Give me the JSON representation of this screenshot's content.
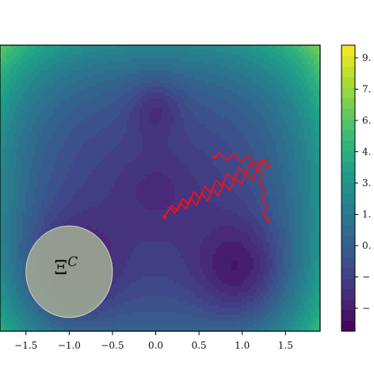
{
  "chart_data": {
    "type": "heatmap",
    "subtype": "filled-contour",
    "title": "",
    "xlabel": "",
    "ylabel": "",
    "colormap": "viridis",
    "x_ticks": [
      -1.5,
      -1.0,
      -0.5,
      0.0,
      0.5,
      1.0,
      1.5
    ],
    "x_tick_labels": [
      "−1.5",
      "−1.0",
      "−0.5",
      "0.0",
      "0.5",
      "1.0",
      "1.5"
    ],
    "xlim": [
      -1.8,
      1.9
    ],
    "ylim": [
      -0.5,
      2.0
    ],
    "colorbar": {
      "tick_labels": [
        "9.",
        "7.",
        "6.",
        "4.",
        "3.",
        "1.",
        "0.",
        "−",
        "−"
      ],
      "range": [
        -2.0,
        9.8
      ]
    },
    "potential_wells": [
      {
        "x": 1.0,
        "y": 0.02,
        "depth": -2.2
      },
      {
        "x": -1.0,
        "y": 0.02,
        "depth": -2.2
      },
      {
        "x": 0.0,
        "y": 1.45,
        "depth": -1.4
      }
    ],
    "region": {
      "label_text": "Ξ",
      "label_superscript": "C",
      "center_x": -1.0,
      "center_y": 0.02,
      "radius_x": 0.5,
      "radius_y": 0.4,
      "fill_color": "#9aa592"
    },
    "trajectories": [
      {
        "color": "#e8131d",
        "points": [
          [
            0.1,
            0.5
          ],
          [
            0.17,
            0.58
          ],
          [
            0.22,
            0.53
          ],
          [
            0.28,
            0.62
          ],
          [
            0.35,
            0.57
          ],
          [
            0.4,
            0.67
          ],
          [
            0.47,
            0.6
          ],
          [
            0.53,
            0.7
          ],
          [
            0.6,
            0.64
          ],
          [
            0.66,
            0.75
          ],
          [
            0.72,
            0.68
          ],
          [
            0.79,
            0.79
          ],
          [
            0.86,
            0.73
          ],
          [
            0.92,
            0.84
          ],
          [
            0.99,
            0.78
          ],
          [
            1.05,
            0.89
          ],
          [
            1.12,
            0.82
          ],
          [
            1.18,
            0.93
          ],
          [
            1.23,
            0.88
          ],
          [
            1.2,
            0.79
          ],
          [
            1.27,
            0.72
          ],
          [
            1.22,
            0.66
          ],
          [
            1.29,
            0.59
          ],
          [
            1.24,
            0.53
          ],
          [
            1.3,
            0.47
          ]
        ]
      },
      {
        "color": "#e8131d",
        "points": [
          [
            0.1,
            0.5
          ],
          [
            0.18,
            0.6
          ],
          [
            0.25,
            0.55
          ],
          [
            0.31,
            0.66
          ],
          [
            0.38,
            0.61
          ],
          [
            0.44,
            0.72
          ],
          [
            0.51,
            0.66
          ],
          [
            0.57,
            0.77
          ],
          [
            0.63,
            0.71
          ],
          [
            0.7,
            0.82
          ],
          [
            0.76,
            0.77
          ],
          [
            0.83,
            0.88
          ],
          [
            0.9,
            0.82
          ],
          [
            0.96,
            0.93
          ],
          [
            1.03,
            0.87
          ],
          [
            1.09,
            0.97
          ],
          [
            1.16,
            0.91
          ],
          [
            1.22,
            0.99
          ],
          [
            1.27,
            0.92
          ],
          [
            1.33,
            0.95
          ],
          [
            1.25,
            1.0
          ],
          [
            1.16,
            0.96
          ],
          [
            1.07,
            1.04
          ],
          [
            0.99,
            0.98
          ],
          [
            0.9,
            1.05
          ],
          [
            0.82,
            0.99
          ],
          [
            0.73,
            1.06
          ],
          [
            0.68,
            1.02
          ]
        ]
      }
    ]
  }
}
